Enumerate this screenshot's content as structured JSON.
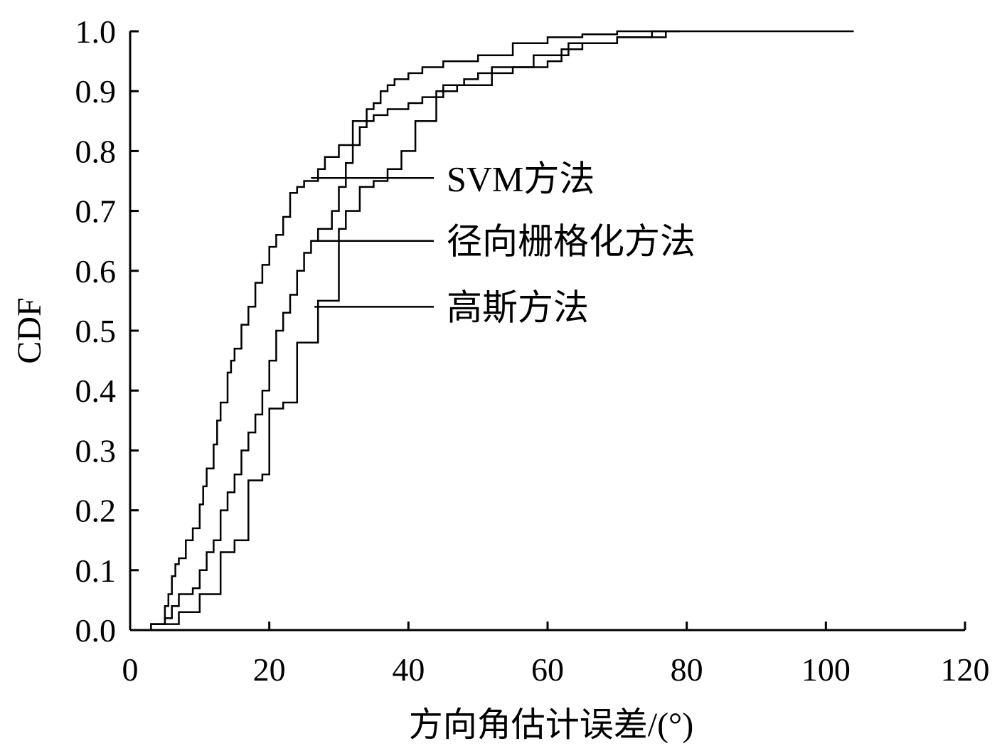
{
  "chart_data": {
    "type": "line",
    "step": true,
    "title": "",
    "xlabel": "方向角估计误差/(°)",
    "ylabel": "CDF",
    "xlim": [
      0,
      120
    ],
    "ylim": [
      0,
      1
    ],
    "xticks": [
      "0",
      "20",
      "40",
      "60",
      "80",
      "100",
      "120"
    ],
    "yticks": [
      "0.0",
      "0.1",
      "0.2",
      "0.3",
      "0.4",
      "0.5",
      "0.6",
      "0.7",
      "0.8",
      "0.9",
      "1.0"
    ],
    "grid": false,
    "line_color": "#000000",
    "series": [
      {
        "name": "SVM方法",
        "x": [
          0.5,
          3,
          5,
          5.5,
          6,
          6.5,
          7,
          8,
          9,
          10,
          10.5,
          11,
          12,
          12.5,
          13,
          14,
          14.5,
          15,
          16,
          17,
          18,
          19,
          20,
          21,
          22,
          23,
          24,
          25,
          26,
          27,
          28,
          30,
          32,
          34,
          35,
          36,
          37,
          38,
          40,
          42,
          45,
          50,
          55,
          60,
          65,
          70,
          79
        ],
        "y": [
          0.0,
          0.01,
          0.04,
          0.06,
          0.09,
          0.11,
          0.12,
          0.15,
          0.17,
          0.21,
          0.24,
          0.27,
          0.31,
          0.35,
          0.38,
          0.43,
          0.45,
          0.47,
          0.51,
          0.54,
          0.58,
          0.61,
          0.64,
          0.66,
          0.69,
          0.73,
          0.74,
          0.75,
          0.75,
          0.77,
          0.79,
          0.81,
          0.85,
          0.87,
          0.88,
          0.9,
          0.91,
          0.92,
          0.93,
          0.94,
          0.95,
          0.96,
          0.98,
          0.99,
          0.995,
          1.0,
          1.0
        ]
      },
      {
        "name": "径向栅格化方法",
        "x": [
          0.5,
          3,
          5,
          6,
          7,
          9,
          10,
          11,
          12,
          13,
          14,
          15,
          16,
          17,
          18,
          19,
          20,
          21,
          22,
          23,
          24,
          25,
          26,
          27,
          29,
          30,
          31,
          32,
          33,
          34,
          35,
          37,
          40,
          42,
          45,
          48,
          50,
          55,
          60,
          62,
          65,
          70,
          75,
          104
        ],
        "y": [
          0.0,
          0.01,
          0.02,
          0.04,
          0.06,
          0.07,
          0.1,
          0.13,
          0.15,
          0.2,
          0.23,
          0.26,
          0.3,
          0.33,
          0.36,
          0.4,
          0.45,
          0.5,
          0.53,
          0.56,
          0.6,
          0.63,
          0.65,
          0.67,
          0.7,
          0.74,
          0.78,
          0.81,
          0.84,
          0.85,
          0.86,
          0.87,
          0.88,
          0.89,
          0.91,
          0.92,
          0.93,
          0.94,
          0.95,
          0.97,
          0.98,
          0.99,
          1.0,
          1.0
        ]
      },
      {
        "name": "高斯方法",
        "x": [
          0.5,
          3,
          7,
          10,
          13,
          15,
          17,
          19,
          20,
          22,
          24,
          27,
          30,
          31,
          33,
          35,
          37,
          39,
          41,
          44,
          47,
          52,
          58,
          63,
          70,
          77
        ],
        "y": [
          0.0,
          0.01,
          0.03,
          0.06,
          0.13,
          0.15,
          0.25,
          0.26,
          0.37,
          0.38,
          0.48,
          0.55,
          0.67,
          0.7,
          0.74,
          0.75,
          0.77,
          0.8,
          0.85,
          0.9,
          0.91,
          0.94,
          0.96,
          0.98,
          0.99,
          1.0
        ]
      }
    ],
    "legend": {
      "style": "leader-line labels",
      "placement": "right of curves"
    }
  }
}
